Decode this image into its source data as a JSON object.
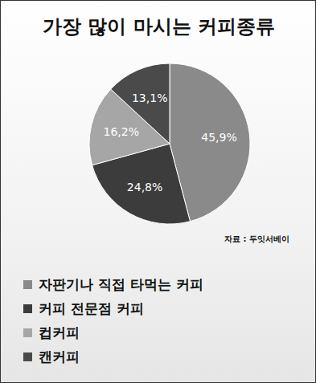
{
  "chart_data": {
    "type": "pie",
    "title": "가장 많이 마시는 커피종류",
    "source": "자료 : 두잇서베이",
    "categories": [
      "자판기나 직접 타먹는 커피",
      "커피 전문점 커피",
      "컵커피",
      "캔커피"
    ],
    "values": [
      45.9,
      24.8,
      16.2,
      13.1
    ],
    "value_labels": [
      "45,9%",
      "24,8%",
      "16,2%",
      "13,1%"
    ],
    "colors": [
      "#8a8a8a",
      "#3c3c3c",
      "#a6a6a6",
      "#4a4a4a"
    ],
    "data_labels": true,
    "legend": "bottom"
  }
}
